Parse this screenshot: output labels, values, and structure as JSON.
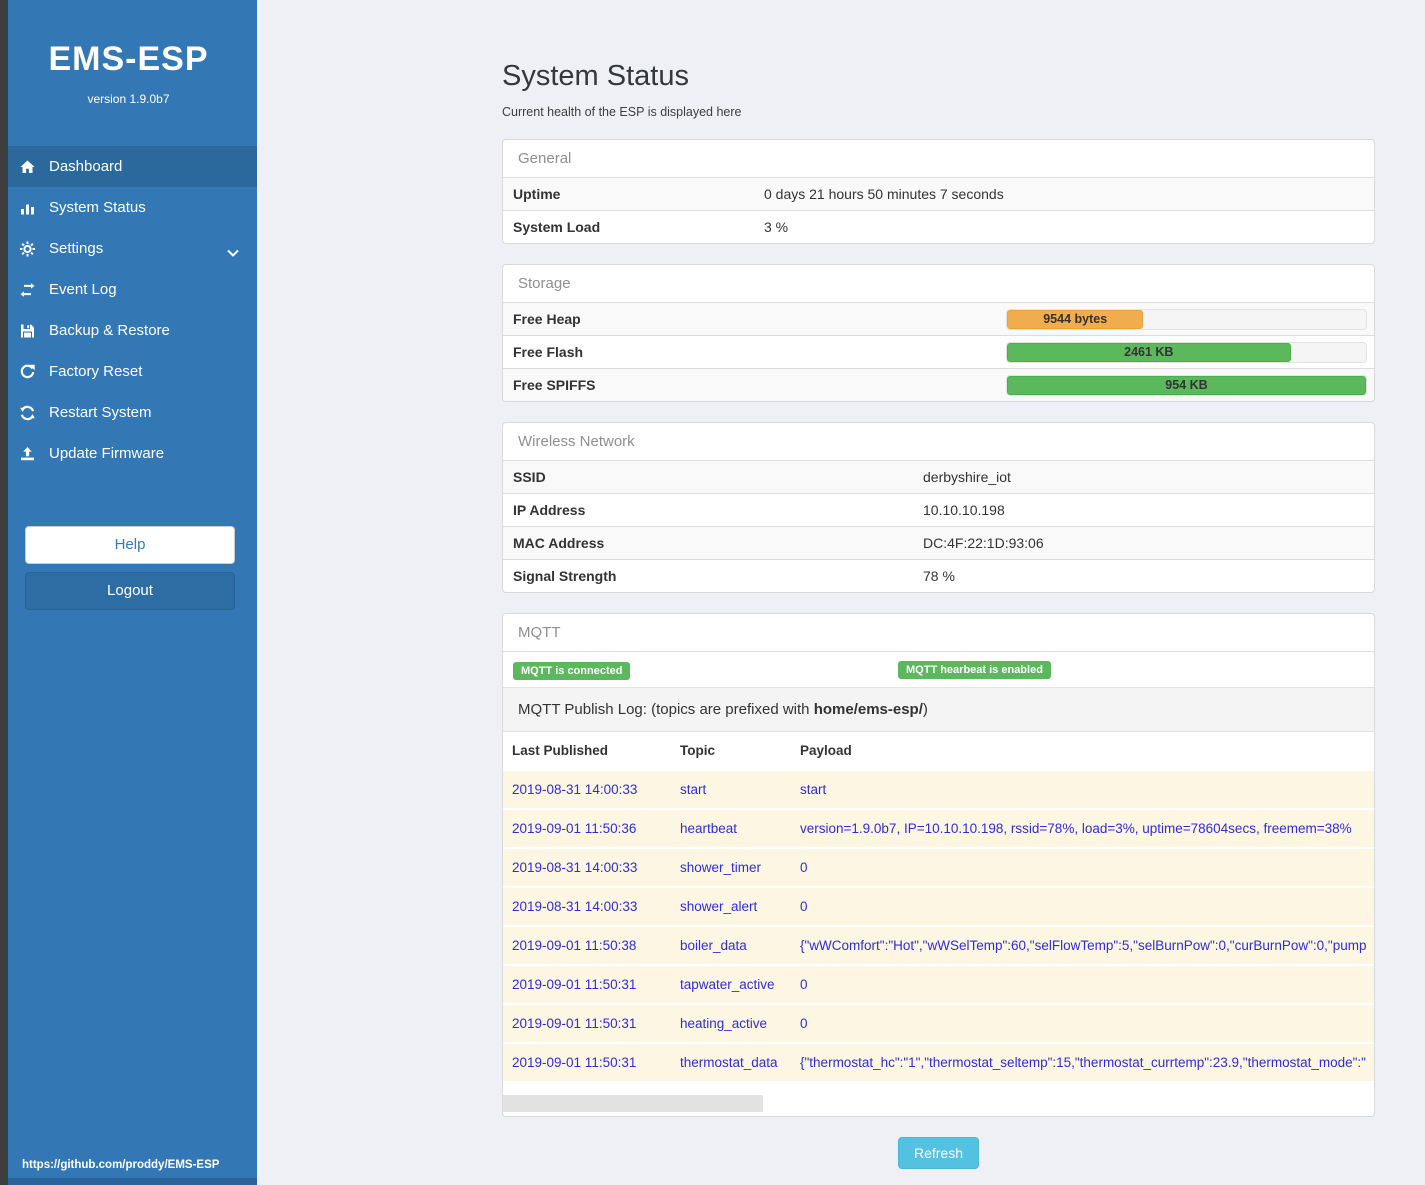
{
  "sidebar": {
    "title": "EMS-ESP",
    "version": "version 1.9.0b7",
    "items": [
      {
        "label": "Dashboard",
        "icon": "home-icon",
        "active": true
      },
      {
        "label": "System Status",
        "icon": "system-status-icon",
        "active": false
      },
      {
        "label": "Settings",
        "icon": "gear-icon",
        "active": false,
        "chevron": "down"
      },
      {
        "label": "Event Log",
        "icon": "exchange-icon",
        "active": false
      },
      {
        "label": "Backup & Restore",
        "icon": "save-icon",
        "active": false
      },
      {
        "label": "Factory Reset",
        "icon": "undo-icon",
        "active": false
      },
      {
        "label": "Restart System",
        "icon": "refresh-icon",
        "active": false
      },
      {
        "label": "Update Firmware",
        "icon": "upload-icon",
        "active": false
      }
    ],
    "help_label": "Help",
    "logout_label": "Logout",
    "footer_link": "https://github.com/proddy/EMS-ESP"
  },
  "page": {
    "title": "System Status",
    "subtitle": "Current health of the ESP is displayed here"
  },
  "general": {
    "header": "General",
    "rows": [
      {
        "label": "Uptime",
        "value": "0 days 21 hours 50 minutes 7 seconds"
      },
      {
        "label": "System Load",
        "value": "3 %"
      }
    ]
  },
  "storage": {
    "header": "Storage",
    "rows": [
      {
        "label": "Free Heap",
        "bar_label": "9544 bytes",
        "percent": 38,
        "color": "#f0ad4e",
        "border": "#eea236"
      },
      {
        "label": "Free Flash",
        "bar_label": "2461 KB",
        "percent": 79,
        "color": "#5cb85c",
        "border": "#4cae4c"
      },
      {
        "label": "Free SPIFFS",
        "bar_label": "954 KB",
        "percent": 100,
        "color": "#5cb85c",
        "border": "#4cae4c"
      }
    ]
  },
  "wireless": {
    "header": "Wireless Network",
    "rows": [
      {
        "label": "SSID",
        "value": "derbyshire_iot"
      },
      {
        "label": "IP Address",
        "value": "10.10.10.198"
      },
      {
        "label": "MAC Address",
        "value": "DC:4F:22:1D:93:06"
      },
      {
        "label": "Signal Strength",
        "value": "78 %"
      }
    ]
  },
  "mqtt": {
    "header": "MQTT",
    "badges": [
      "MQTT is connected",
      "MQTT hearbeat is enabled"
    ],
    "publish_log": {
      "prefix": "MQTT Publish Log: (topics are prefixed with ",
      "bold": "home/ems-esp/",
      "suffix": ")"
    },
    "table": {
      "columns": [
        "Last Published",
        "Topic",
        "Payload"
      ],
      "rows": [
        {
          "ts": "2019-08-31 14:00:33",
          "topic": "start",
          "payload": "start"
        },
        {
          "ts": "2019-09-01 11:50:36",
          "topic": "heartbeat",
          "payload": "version=1.9.0b7, IP=10.10.10.198, rssid=78%, load=3%, uptime=78604secs, freemem=38%"
        },
        {
          "ts": "2019-08-31 14:00:33",
          "topic": "shower_timer",
          "payload": "0"
        },
        {
          "ts": "2019-08-31 14:00:33",
          "topic": "shower_alert",
          "payload": "0"
        },
        {
          "ts": "2019-09-01 11:50:38",
          "topic": "boiler_data",
          "payload": "{\"wWComfort\":\"Hot\",\"wWSelTemp\":60,\"selFlowTemp\":5,\"selBurnPow\":0,\"curBurnPow\":0,\"pump"
        },
        {
          "ts": "2019-09-01 11:50:31",
          "topic": "tapwater_active",
          "payload": "0"
        },
        {
          "ts": "2019-09-01 11:50:31",
          "topic": "heating_active",
          "payload": "0"
        },
        {
          "ts": "2019-09-01 11:50:31",
          "topic": "thermostat_data",
          "payload": "{\"thermostat_hc\":\"1\",\"thermostat_seltemp\":15,\"thermostat_currtemp\":23.9,\"thermostat_mode\":\""
        }
      ]
    },
    "refresh_label": "Refresh"
  },
  "colors": {
    "sidebar": "#3378b5",
    "sidebar_active": "#2b689c",
    "success_green": "#5cb85c",
    "warning_orange": "#f0ad4e",
    "info_cyan": "#55c1e1",
    "log_link_blue": "#2e2ed8",
    "log_row_yellow": "#fdf6e3"
  }
}
